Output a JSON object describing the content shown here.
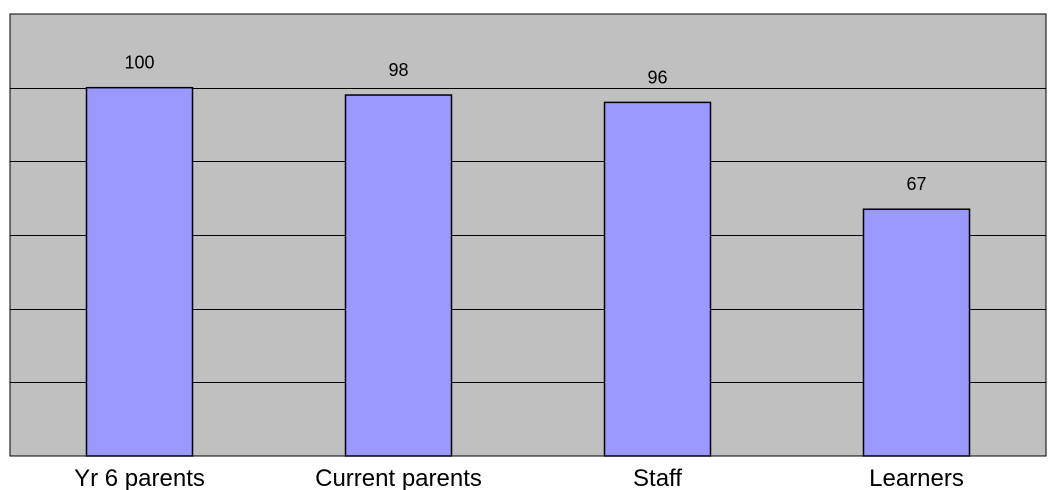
{
  "chart_data": {
    "type": "bar",
    "categories": [
      "Yr 6 parents",
      "Current parents",
      "Staff",
      "Learners"
    ],
    "values": [
      100,
      98,
      96,
      67
    ],
    "data_labels": [
      "100",
      "98",
      "96",
      "67"
    ],
    "title": "",
    "xlabel": "",
    "ylabel": "",
    "ylim": [
      0,
      120
    ],
    "grid": true,
    "legend": "none",
    "colors": {
      "plot_background": "#c0c0c0",
      "bar_fill": "#9999ff",
      "bar_stroke": "#000000",
      "gridline": "#000000"
    }
  }
}
